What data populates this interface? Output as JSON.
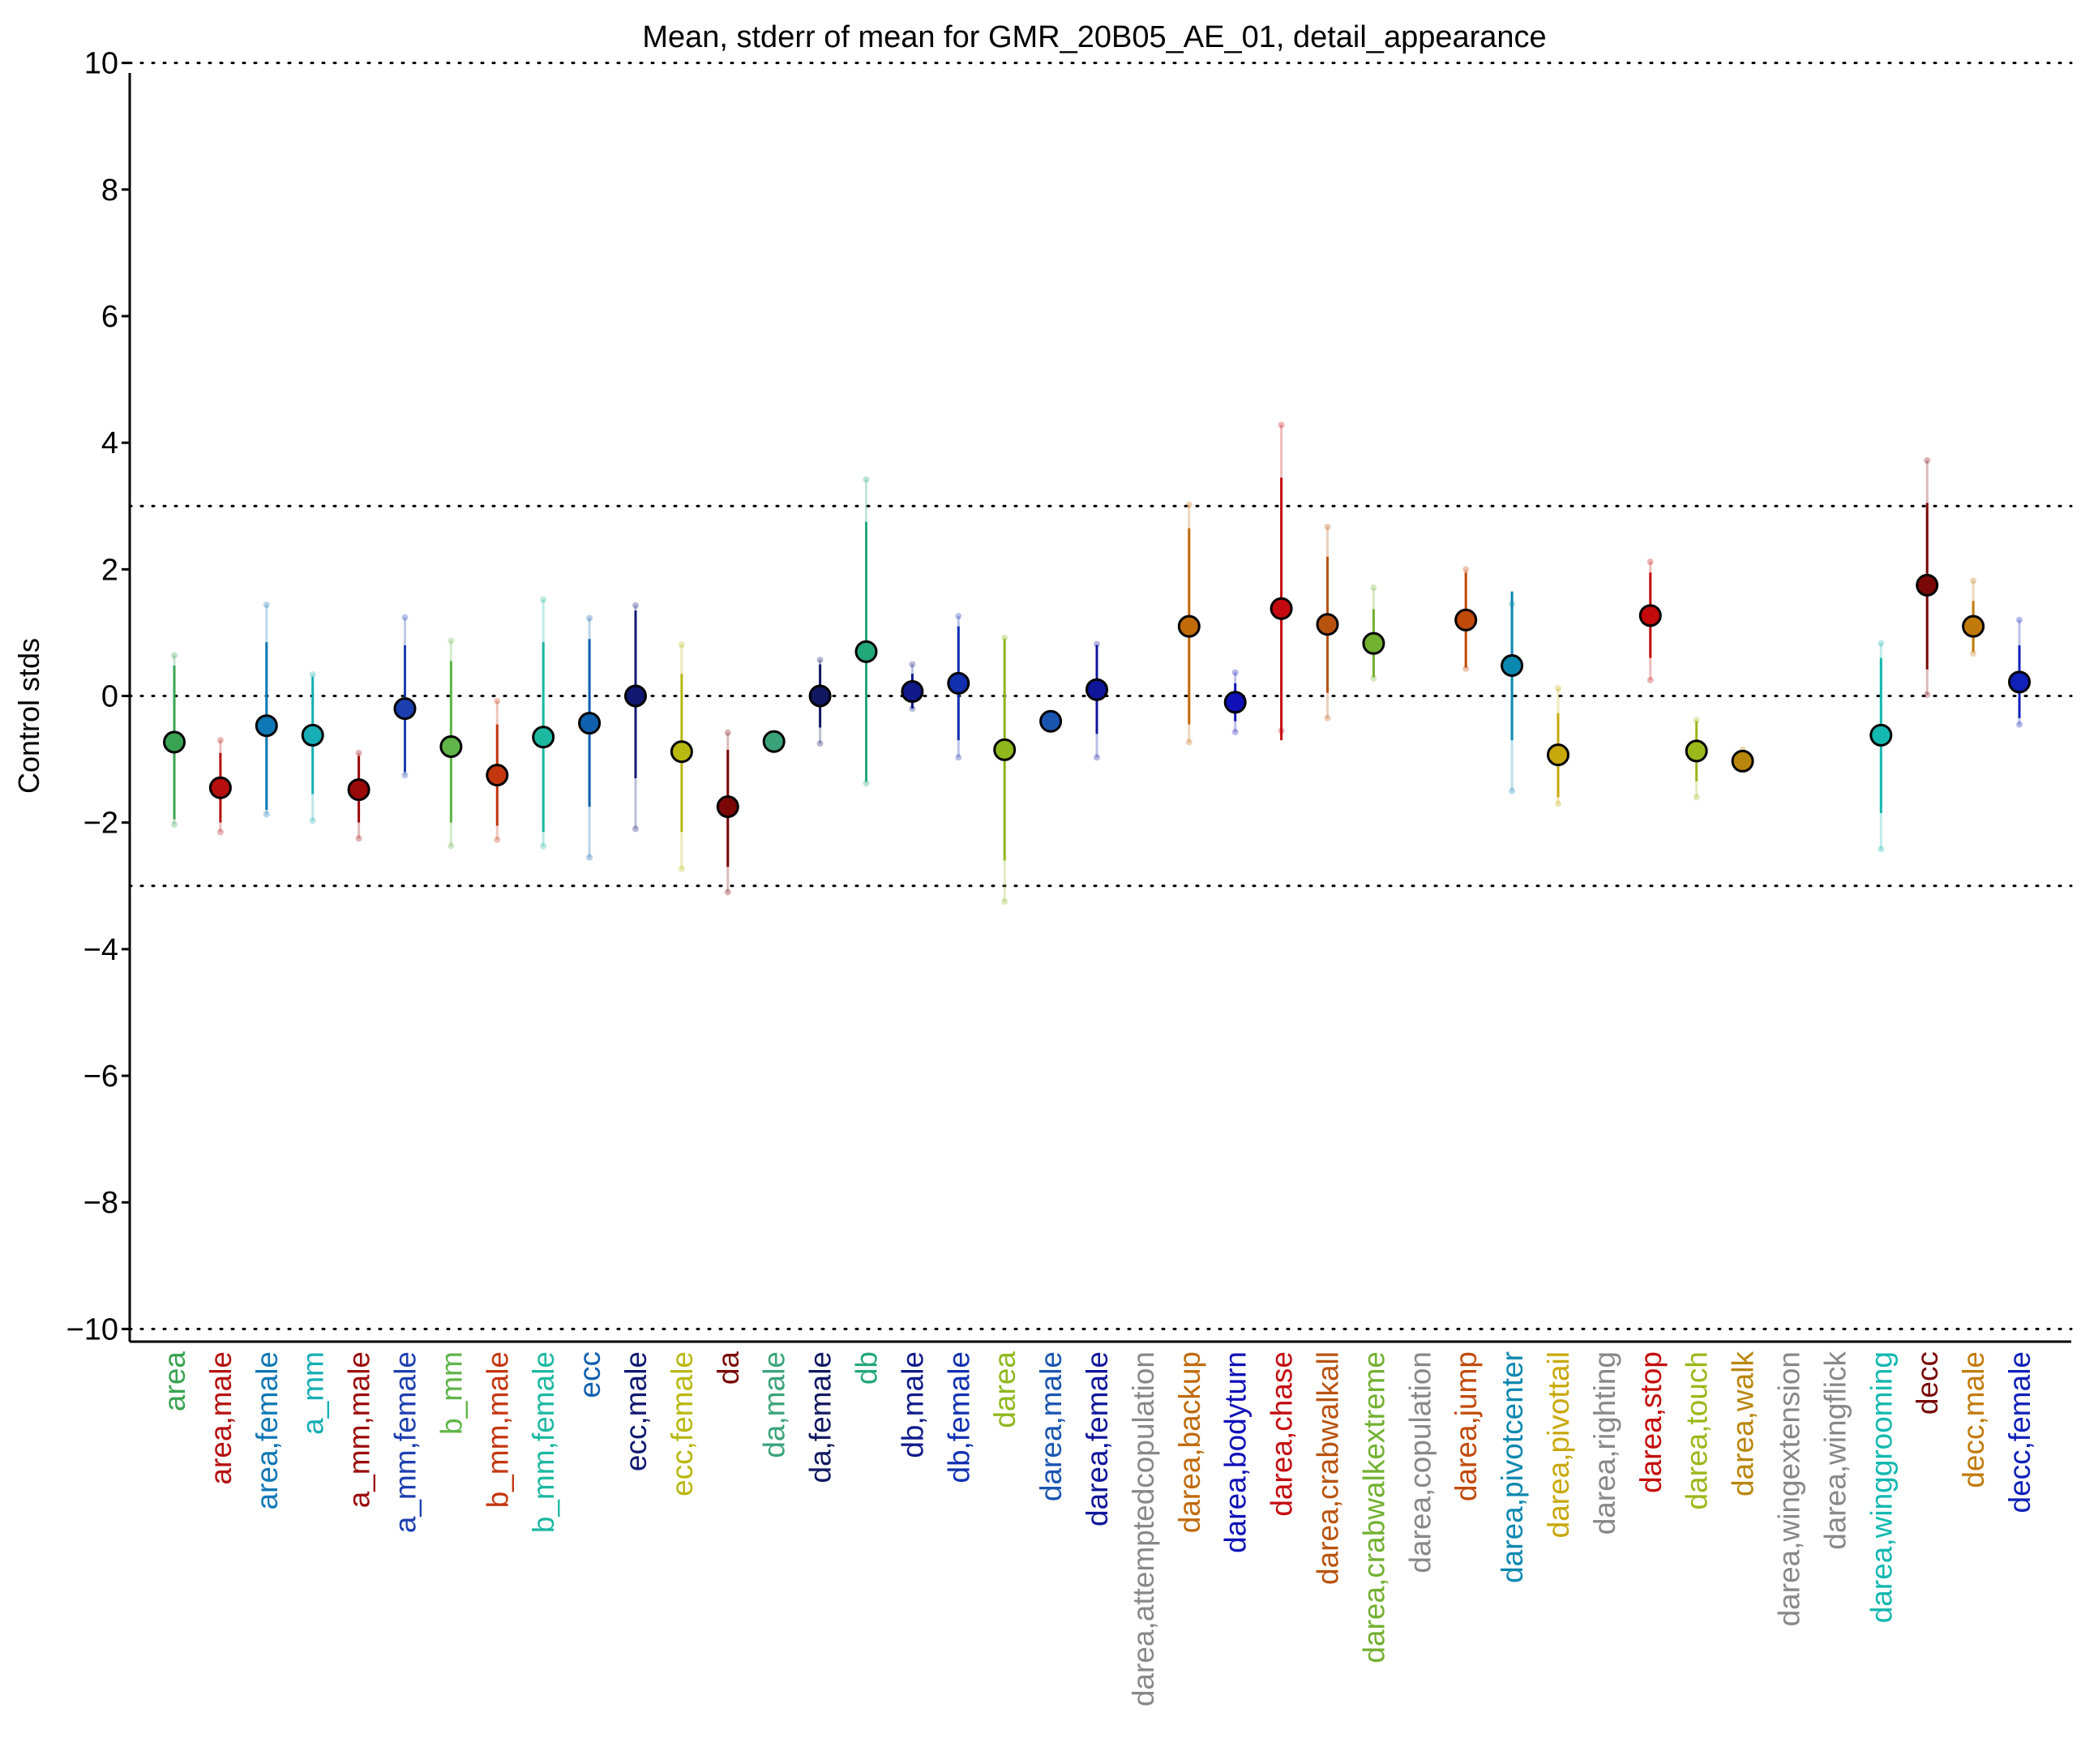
{
  "chart_data": {
    "type": "scatter",
    "title": "Mean, stderr of mean for GMR_20B05_AE_01, detail_appearance",
    "ylabel": "Control stds",
    "xlabel": "",
    "ylim": [
      -10.2,
      10.2
    ],
    "yticks": [
      10,
      8,
      6,
      4,
      2,
      0,
      -2,
      -4,
      -6,
      -8,
      -10
    ],
    "ytick_labels": [
      "10",
      "8",
      "6",
      "4",
      "2",
      "0",
      "−2",
      "−4",
      "−6",
      "−8",
      "−10"
    ],
    "reference_lines": [
      10,
      3,
      0,
      -3,
      -10
    ],
    "grid": false,
    "legend": "none",
    "categories": [
      {
        "label": "area",
        "color": "#3aa352",
        "mean": -0.73,
        "se_low": -1.95,
        "se_high": 0.48,
        "outer_low": -2.03,
        "outer_high": 0.64
      },
      {
        "label": "area,male",
        "color": "#b50f0f",
        "mean": -1.45,
        "se_low": -2.0,
        "se_high": -0.9,
        "outer_low": -2.15,
        "outer_high": -0.7
      },
      {
        "label": "area,female",
        "color": "#0e77b5",
        "mean": -0.47,
        "se_low": -1.8,
        "se_high": 0.85,
        "outer_low": -1.87,
        "outer_high": 1.44
      },
      {
        "label": "a_mm",
        "color": "#17aeb5",
        "mean": -0.62,
        "se_low": -1.55,
        "se_high": 0.3,
        "outer_low": -1.97,
        "outer_high": 0.34
      },
      {
        "label": "a_mm,male",
        "color": "#9b0a0a",
        "mean": -1.48,
        "se_low": -2.0,
        "se_high": -0.95,
        "outer_low": -2.25,
        "outer_high": -0.9
      },
      {
        "label": "a_mm,female",
        "color": "#1c3fb0",
        "mean": -0.2,
        "se_low": -1.2,
        "se_high": 0.8,
        "outer_low": -1.25,
        "outer_high": 1.24
      },
      {
        "label": "b_mm",
        "color": "#5fb548",
        "mean": -0.8,
        "se_low": -2.0,
        "se_high": 0.55,
        "outer_low": -2.37,
        "outer_high": 0.87
      },
      {
        "label": "b_mm,male",
        "color": "#c4360e",
        "mean": -1.25,
        "se_low": -2.05,
        "se_high": -0.45,
        "outer_low": -2.27,
        "outer_high": -0.08
      },
      {
        "label": "b_mm,female",
        "color": "#1cb8a0",
        "mean": -0.65,
        "se_low": -2.15,
        "se_high": 0.85,
        "outer_low": -2.37,
        "outer_high": 1.52
      },
      {
        "label": "ecc",
        "color": "#1060b0",
        "mean": -0.43,
        "se_low": -1.75,
        "se_high": 0.9,
        "outer_low": -2.55,
        "outer_high": 1.23
      },
      {
        "label": "ecc,male",
        "color": "#101870",
        "mean": 0.0,
        "se_low": -1.3,
        "se_high": 1.35,
        "outer_low": -2.1,
        "outer_high": 1.43
      },
      {
        "label": "ecc,female",
        "color": "#b8b80f",
        "mean": -0.88,
        "se_low": -2.15,
        "se_high": 0.35,
        "outer_low": -2.73,
        "outer_high": 0.81
      },
      {
        "label": "da",
        "color": "#7a0606",
        "mean": -1.75,
        "se_low": -2.7,
        "se_high": -0.85,
        "outer_low": -3.1,
        "outer_high": -0.58
      },
      {
        "label": "da,male",
        "color": "#3aa37a",
        "mean": -0.72,
        "se_low": -0.8,
        "se_high": -0.64,
        "outer_low": -0.85,
        "outer_high": -0.6
      },
      {
        "label": "da,female",
        "color": "#101860",
        "mean": 0.0,
        "se_low": -0.5,
        "se_high": 0.5,
        "outer_low": -0.75,
        "outer_high": 0.57
      },
      {
        "label": "db",
        "color": "#23a87a",
        "mean": 0.7,
        "se_low": -1.35,
        "se_high": 2.75,
        "outer_low": -1.38,
        "outer_high": 3.42
      },
      {
        "label": "db,male",
        "color": "#101a8a",
        "mean": 0.07,
        "se_low": -0.2,
        "se_high": 0.35,
        "outer_low": -0.2,
        "outer_high": 0.5
      },
      {
        "label": "db,female",
        "color": "#1030b0",
        "mean": 0.2,
        "se_low": -0.7,
        "se_high": 1.1,
        "outer_low": -0.97,
        "outer_high": 1.26
      },
      {
        "label": "darea",
        "color": "#8fb81c",
        "mean": -0.85,
        "se_low": -2.6,
        "se_high": 0.9,
        "outer_low": -3.25,
        "outer_high": 0.92
      },
      {
        "label": "darea,male",
        "color": "#1a55b0",
        "mean": -0.4,
        "se_low": -0.48,
        "se_high": -0.32,
        "outer_low": -0.5,
        "outer_high": -0.3
      },
      {
        "label": "darea,female",
        "color": "#10169a",
        "mean": 0.1,
        "se_low": -0.6,
        "se_high": 0.8,
        "outer_low": -0.97,
        "outer_high": 0.82
      },
      {
        "label": "darea,attemptedcopulation",
        "color": "#888888"
      },
      {
        "label": "darea,backup",
        "color": "#c06a0a",
        "mean": 1.1,
        "se_low": -0.45,
        "se_high": 2.65,
        "outer_low": -0.73,
        "outer_high": 3.02
      },
      {
        "label": "darea,bodyturn",
        "color": "#1010b8",
        "mean": -0.1,
        "se_low": -0.4,
        "se_high": 0.2,
        "outer_low": -0.57,
        "outer_high": 0.37
      },
      {
        "label": "darea,chase",
        "color": "#c40a10",
        "mean": 1.38,
        "se_low": -0.7,
        "se_high": 3.45,
        "outer_low": -0.55,
        "outer_high": 4.28
      },
      {
        "label": "darea,crabwalkall",
        "color": "#b8530f",
        "mean": 1.13,
        "se_low": 0.05,
        "se_high": 2.2,
        "outer_low": -0.35,
        "outer_high": 2.67
      },
      {
        "label": "darea,crabwalkextreme",
        "color": "#72b030",
        "mean": 0.83,
        "se_low": 0.3,
        "se_high": 1.37,
        "outer_low": 0.28,
        "outer_high": 1.71
      },
      {
        "label": "darea,copulation",
        "color": "#888888"
      },
      {
        "label": "darea,jump",
        "color": "#c04a0a",
        "mean": 1.2,
        "se_low": 0.45,
        "se_high": 1.95,
        "outer_low": 0.43,
        "outer_high": 2.0
      },
      {
        "label": "darea,pivotcenter",
        "color": "#0b88b0",
        "mean": 0.48,
        "se_low": -0.7,
        "se_high": 1.65,
        "outer_low": -1.5,
        "outer_high": 1.45
      },
      {
        "label": "darea,pivottail",
        "color": "#c8a80a",
        "mean": -0.93,
        "se_low": -1.6,
        "se_high": -0.27,
        "outer_low": -1.7,
        "outer_high": 0.12
      },
      {
        "label": "darea,righting",
        "color": "#888888"
      },
      {
        "label": "darea,stop",
        "color": "#c40a0a",
        "mean": 1.27,
        "se_low": 0.6,
        "se_high": 1.95,
        "outer_low": 0.25,
        "outer_high": 2.12
      },
      {
        "label": "darea,touch",
        "color": "#9ab81a",
        "mean": -0.87,
        "se_low": -1.35,
        "se_high": -0.4,
        "outer_low": -1.6,
        "outer_high": -0.38
      },
      {
        "label": "darea,walk",
        "color": "#b8860a",
        "mean": -1.03,
        "se_low": -1.08,
        "se_high": -0.98,
        "outer_low": -1.1,
        "outer_high": -0.85
      },
      {
        "label": "darea,wingextension",
        "color": "#888888"
      },
      {
        "label": "darea,wingflick",
        "color": "#888888"
      },
      {
        "label": "darea,winggrooming",
        "color": "#13b8b0",
        "mean": -0.62,
        "se_low": -1.85,
        "se_high": 0.6,
        "outer_low": -2.42,
        "outer_high": 0.83
      },
      {
        "label": "decc",
        "color": "#7a0808",
        "mean": 1.75,
        "se_low": 0.42,
        "se_high": 3.05,
        "outer_low": 0.02,
        "outer_high": 3.72
      },
      {
        "label": "decc,male",
        "color": "#c07a0a",
        "mean": 1.1,
        "se_low": 0.7,
        "se_high": 1.5,
        "outer_low": 0.67,
        "outer_high": 1.82
      },
      {
        "label": "decc,female",
        "color": "#1020b8",
        "mean": 0.22,
        "se_low": -0.35,
        "se_high": 0.8,
        "outer_low": -0.45,
        "outer_high": 1.2
      }
    ]
  }
}
